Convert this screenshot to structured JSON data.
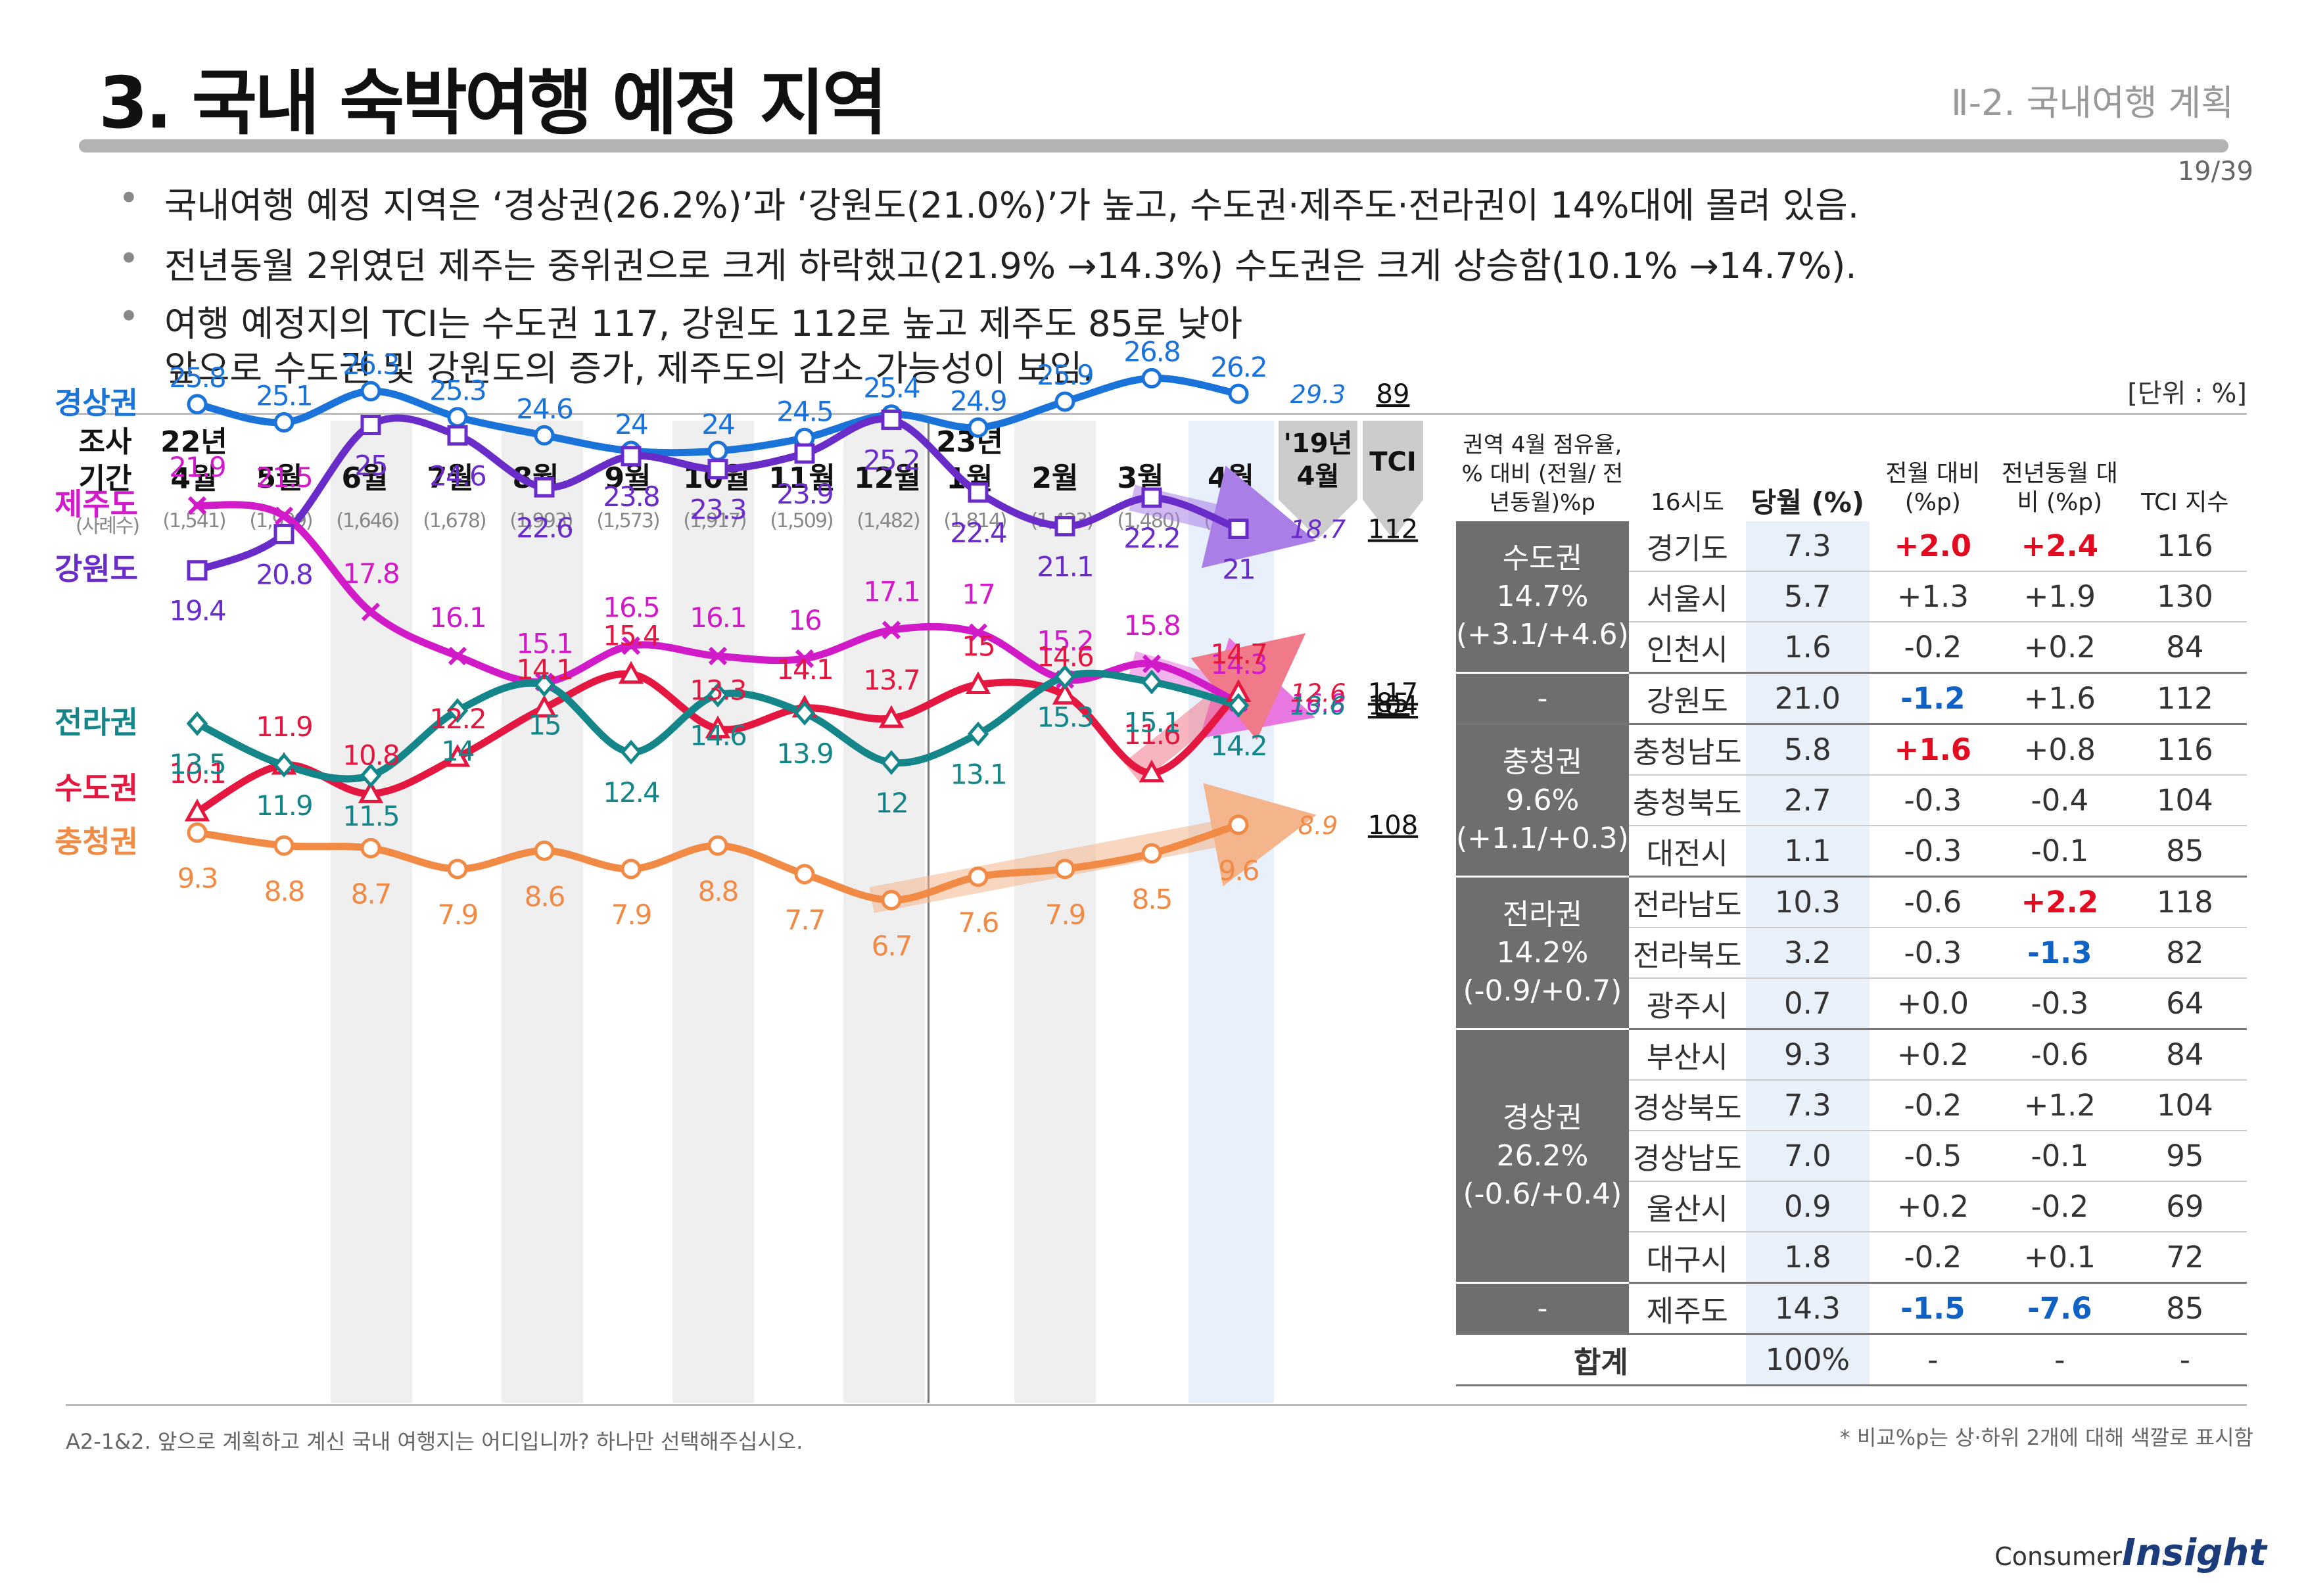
{
  "header": {
    "title": "3. 국내 숙박여행 예정 지역",
    "section": "Ⅱ-2. 국내여행 계획",
    "page": "19/39"
  },
  "bullets": [
    "국내여행 예정 지역은 ‘경상권(26.2%)’과 ‘강원도(21.0%)’가 높고, 수도권·제주도·전라권이 14%대에 몰려 있음.",
    "전년동월 2위였던 제주는 중위권으로 크게 하락했고(21.9% →14.3%) 수도권은 크게 상승함(10.1% →14.7%).",
    "여행 예정지의 TCI는 수도권 117, 강원도 112로 높고 제주도 85로 낮아",
    "앞으로 수도권 및 강원도의 증가, 제주도의 감소 가능성이 보임."
  ],
  "unit": "[단위 : %]",
  "chart_data": {
    "type": "line",
    "period_header": "조사 기간",
    "sample_header": "(사례수)",
    "categories": [
      "22년 4월",
      "5월",
      "6월",
      "7월",
      "8월",
      "9월",
      "10월",
      "11월",
      "12월",
      "23년 1월",
      "2월",
      "3월",
      "4월"
    ],
    "sample_sizes": [
      "(1,541)",
      "(1,999)",
      "(1,646)",
      "(1,678)",
      "(1,993)",
      "(1,573)",
      "(1,917)",
      "(1,509)",
      "(1,482)",
      "(1,814)",
      "(1,423)",
      "(1,480)",
      "(1,475)"
    ],
    "ylim": [
      5,
      28
    ],
    "series": [
      {
        "name": "경상권",
        "color": "#1a73d9",
        "marker": "circle",
        "values": [
          25.8,
          25.1,
          26.3,
          25.3,
          24.6,
          24.0,
          24.0,
          24.5,
          25.4,
          24.9,
          25.9,
          26.8,
          26.2
        ],
        "prev_year": "29.3",
        "tci": "89"
      },
      {
        "name": "강원도",
        "color": "#6a2cc8",
        "marker": "square",
        "values": [
          19.4,
          20.8,
          25.0,
          24.6,
          22.6,
          23.8,
          23.3,
          23.9,
          25.2,
          22.4,
          21.1,
          22.2,
          21.0
        ],
        "prev_year": "18.7",
        "tci": "112"
      },
      {
        "name": "제주도",
        "color": "#d21bc8",
        "marker": "x",
        "values": [
          21.9,
          21.5,
          17.8,
          16.1,
          15.1,
          16.5,
          16.1,
          16.0,
          17.1,
          17.0,
          15.2,
          15.8,
          14.3
        ],
        "prev_year": "16.8",
        "tci": "85"
      },
      {
        "name": "수도권",
        "color": "#e3173f",
        "marker": "triangle",
        "values": [
          10.1,
          11.9,
          10.8,
          12.2,
          14.1,
          15.4,
          13.3,
          14.1,
          13.7,
          15.0,
          14.6,
          11.6,
          14.7
        ],
        "prev_year": "12.6",
        "tci": "117"
      },
      {
        "name": "전라권",
        "color": "#14868a",
        "marker": "diamond",
        "values": [
          13.5,
          11.9,
          11.5,
          14.0,
          15.0,
          12.4,
          14.6,
          13.9,
          12.0,
          13.1,
          15.3,
          15.1,
          14.2
        ],
        "prev_year": "13.6",
        "tci": "104"
      },
      {
        "name": "충청권",
        "color": "#f08a45",
        "marker": "circle",
        "values": [
          9.3,
          8.8,
          8.7,
          7.9,
          8.6,
          7.9,
          8.8,
          7.7,
          6.7,
          7.6,
          7.9,
          8.5,
          9.6
        ],
        "prev_year": "8.9",
        "tci": "108"
      }
    ],
    "prev_year_header": "'19년 4월",
    "tci_header": "TCI"
  },
  "table": {
    "headers": [
      "권역 4월 점유율, % 대비 (전월/ 전년동월)%p",
      "16시도",
      "당월 (%)",
      "전월 대비 (%p)",
      "전년동월 대비 (%p)",
      "TCI 지수"
    ],
    "groups": [
      {
        "region": "수도권",
        "share": "14.7%",
        "change": "(+3.1/+4.6)",
        "rows": [
          {
            "name": "경기도",
            "cur": "7.3",
            "mom": "+2.0",
            "yoy": "+2.4",
            "tci": "116",
            "mom_c": "pos",
            "yoy_c": "pos"
          },
          {
            "name": "서울시",
            "cur": "5.7",
            "mom": "+1.3",
            "yoy": "+1.9",
            "tci": "130"
          },
          {
            "name": "인천시",
            "cur": "1.6",
            "mom": "-0.2",
            "yoy": "+0.2",
            "tci": "84"
          }
        ]
      },
      {
        "region": "-",
        "share": "",
        "change": "",
        "rows": [
          {
            "name": "강원도",
            "cur": "21.0",
            "mom": "-1.2",
            "yoy": "+1.6",
            "tci": "112",
            "mom_c": "neg"
          }
        ]
      },
      {
        "region": "충청권",
        "share": "9.6%",
        "change": "(+1.1/+0.3)",
        "rows": [
          {
            "name": "충청남도",
            "cur": "5.8",
            "mom": "+1.6",
            "yoy": "+0.8",
            "tci": "116",
            "mom_c": "pos"
          },
          {
            "name": "충청북도",
            "cur": "2.7",
            "mom": "-0.3",
            "yoy": "-0.4",
            "tci": "104"
          },
          {
            "name": "대전시",
            "cur": "1.1",
            "mom": "-0.3",
            "yoy": "-0.1",
            "tci": "85"
          }
        ]
      },
      {
        "region": "전라권",
        "share": "14.2%",
        "change": "(-0.9/+0.7)",
        "rows": [
          {
            "name": "전라남도",
            "cur": "10.3",
            "mom": "-0.6",
            "yoy": "+2.2",
            "tci": "118",
            "yoy_c": "pos"
          },
          {
            "name": "전라북도",
            "cur": "3.2",
            "mom": "-0.3",
            "yoy": "-1.3",
            "tci": "82",
            "yoy_c": "neg"
          },
          {
            "name": "광주시",
            "cur": "0.7",
            "mom": "+0.0",
            "yoy": "-0.3",
            "tci": "64"
          }
        ]
      },
      {
        "region": "경상권",
        "share": "26.2%",
        "change": "(-0.6/+0.4)",
        "rows": [
          {
            "name": "부산시",
            "cur": "9.3",
            "mom": "+0.2",
            "yoy": "-0.6",
            "tci": "84"
          },
          {
            "name": "경상북도",
            "cur": "7.3",
            "mom": "-0.2",
            "yoy": "+1.2",
            "tci": "104"
          },
          {
            "name": "경상남도",
            "cur": "7.0",
            "mom": "-0.5",
            "yoy": "-0.1",
            "tci": "95"
          },
          {
            "name": "울산시",
            "cur": "0.9",
            "mom": "+0.2",
            "yoy": "-0.2",
            "tci": "69"
          },
          {
            "name": "대구시",
            "cur": "1.8",
            "mom": "-0.2",
            "yoy": "+0.1",
            "tci": "72"
          }
        ]
      },
      {
        "region": "-",
        "share": "",
        "change": "",
        "rows": [
          {
            "name": "제주도",
            "cur": "14.3",
            "mom": "-1.5",
            "yoy": "-7.6",
            "tci": "85",
            "mom_c": "neg",
            "yoy_c": "neg"
          }
        ]
      }
    ],
    "total": {
      "label": "합계",
      "cur": "100%",
      "mom": "-",
      "yoy": "-",
      "tci": "-"
    }
  },
  "footnote": "A2-1&2. 앞으로 계획하고 계신 국내 여행지는 어디입니까? 하나만 선택해주십시오.",
  "note": "* 비교%p는 상·하위 2개에 대해 색깔로 표시함",
  "brand": {
    "prefix": "Consumer",
    "name": "Insight"
  }
}
